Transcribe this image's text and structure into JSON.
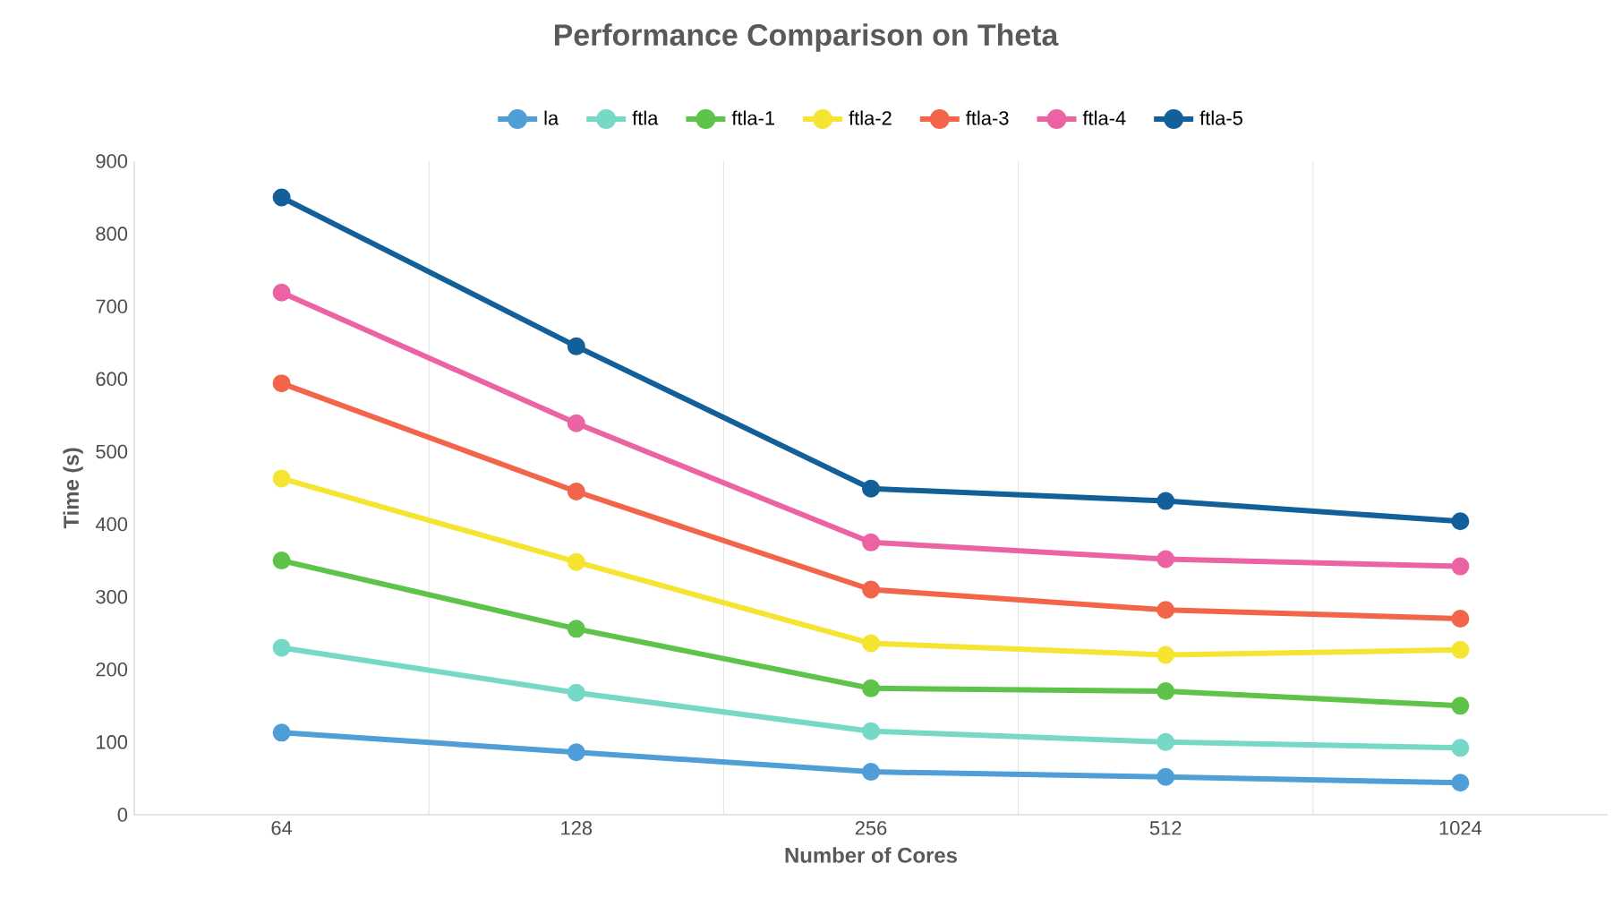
{
  "chart_data": {
    "type": "line",
    "title": "Performance Comparison on Theta",
    "xlabel": "Number of Cores",
    "ylabel": "Time (s)",
    "categories": [
      "64",
      "128",
      "256",
      "512",
      "1024"
    ],
    "series": [
      {
        "name": "la",
        "color": "#4f9ed8",
        "values": [
          113,
          86,
          59,
          52,
          44
        ]
      },
      {
        "name": "ftla",
        "color": "#76d8c6",
        "values": [
          230,
          168,
          115,
          100,
          92
        ]
      },
      {
        "name": "ftla-1",
        "color": "#5ec34a",
        "values": [
          350,
          256,
          174,
          170,
          150
        ]
      },
      {
        "name": "ftla-2",
        "color": "#f5e432",
        "values": [
          463,
          348,
          236,
          220,
          227
        ]
      },
      {
        "name": "ftla-3",
        "color": "#f2654a",
        "values": [
          594,
          445,
          310,
          282,
          270
        ]
      },
      {
        "name": "ftla-4",
        "color": "#ec63a3",
        "values": [
          719,
          539,
          375,
          352,
          342
        ]
      },
      {
        "name": "ftla-5",
        "color": "#135f9a",
        "values": [
          850,
          645,
          449,
          432,
          404
        ]
      }
    ],
    "ylim": [
      0,
      900
    ],
    "yticks": [
      0,
      100,
      200,
      300,
      400,
      500,
      600,
      700,
      800,
      900
    ],
    "grid": "x",
    "legend": "top",
    "marker": "circle",
    "line_style": "solid"
  }
}
